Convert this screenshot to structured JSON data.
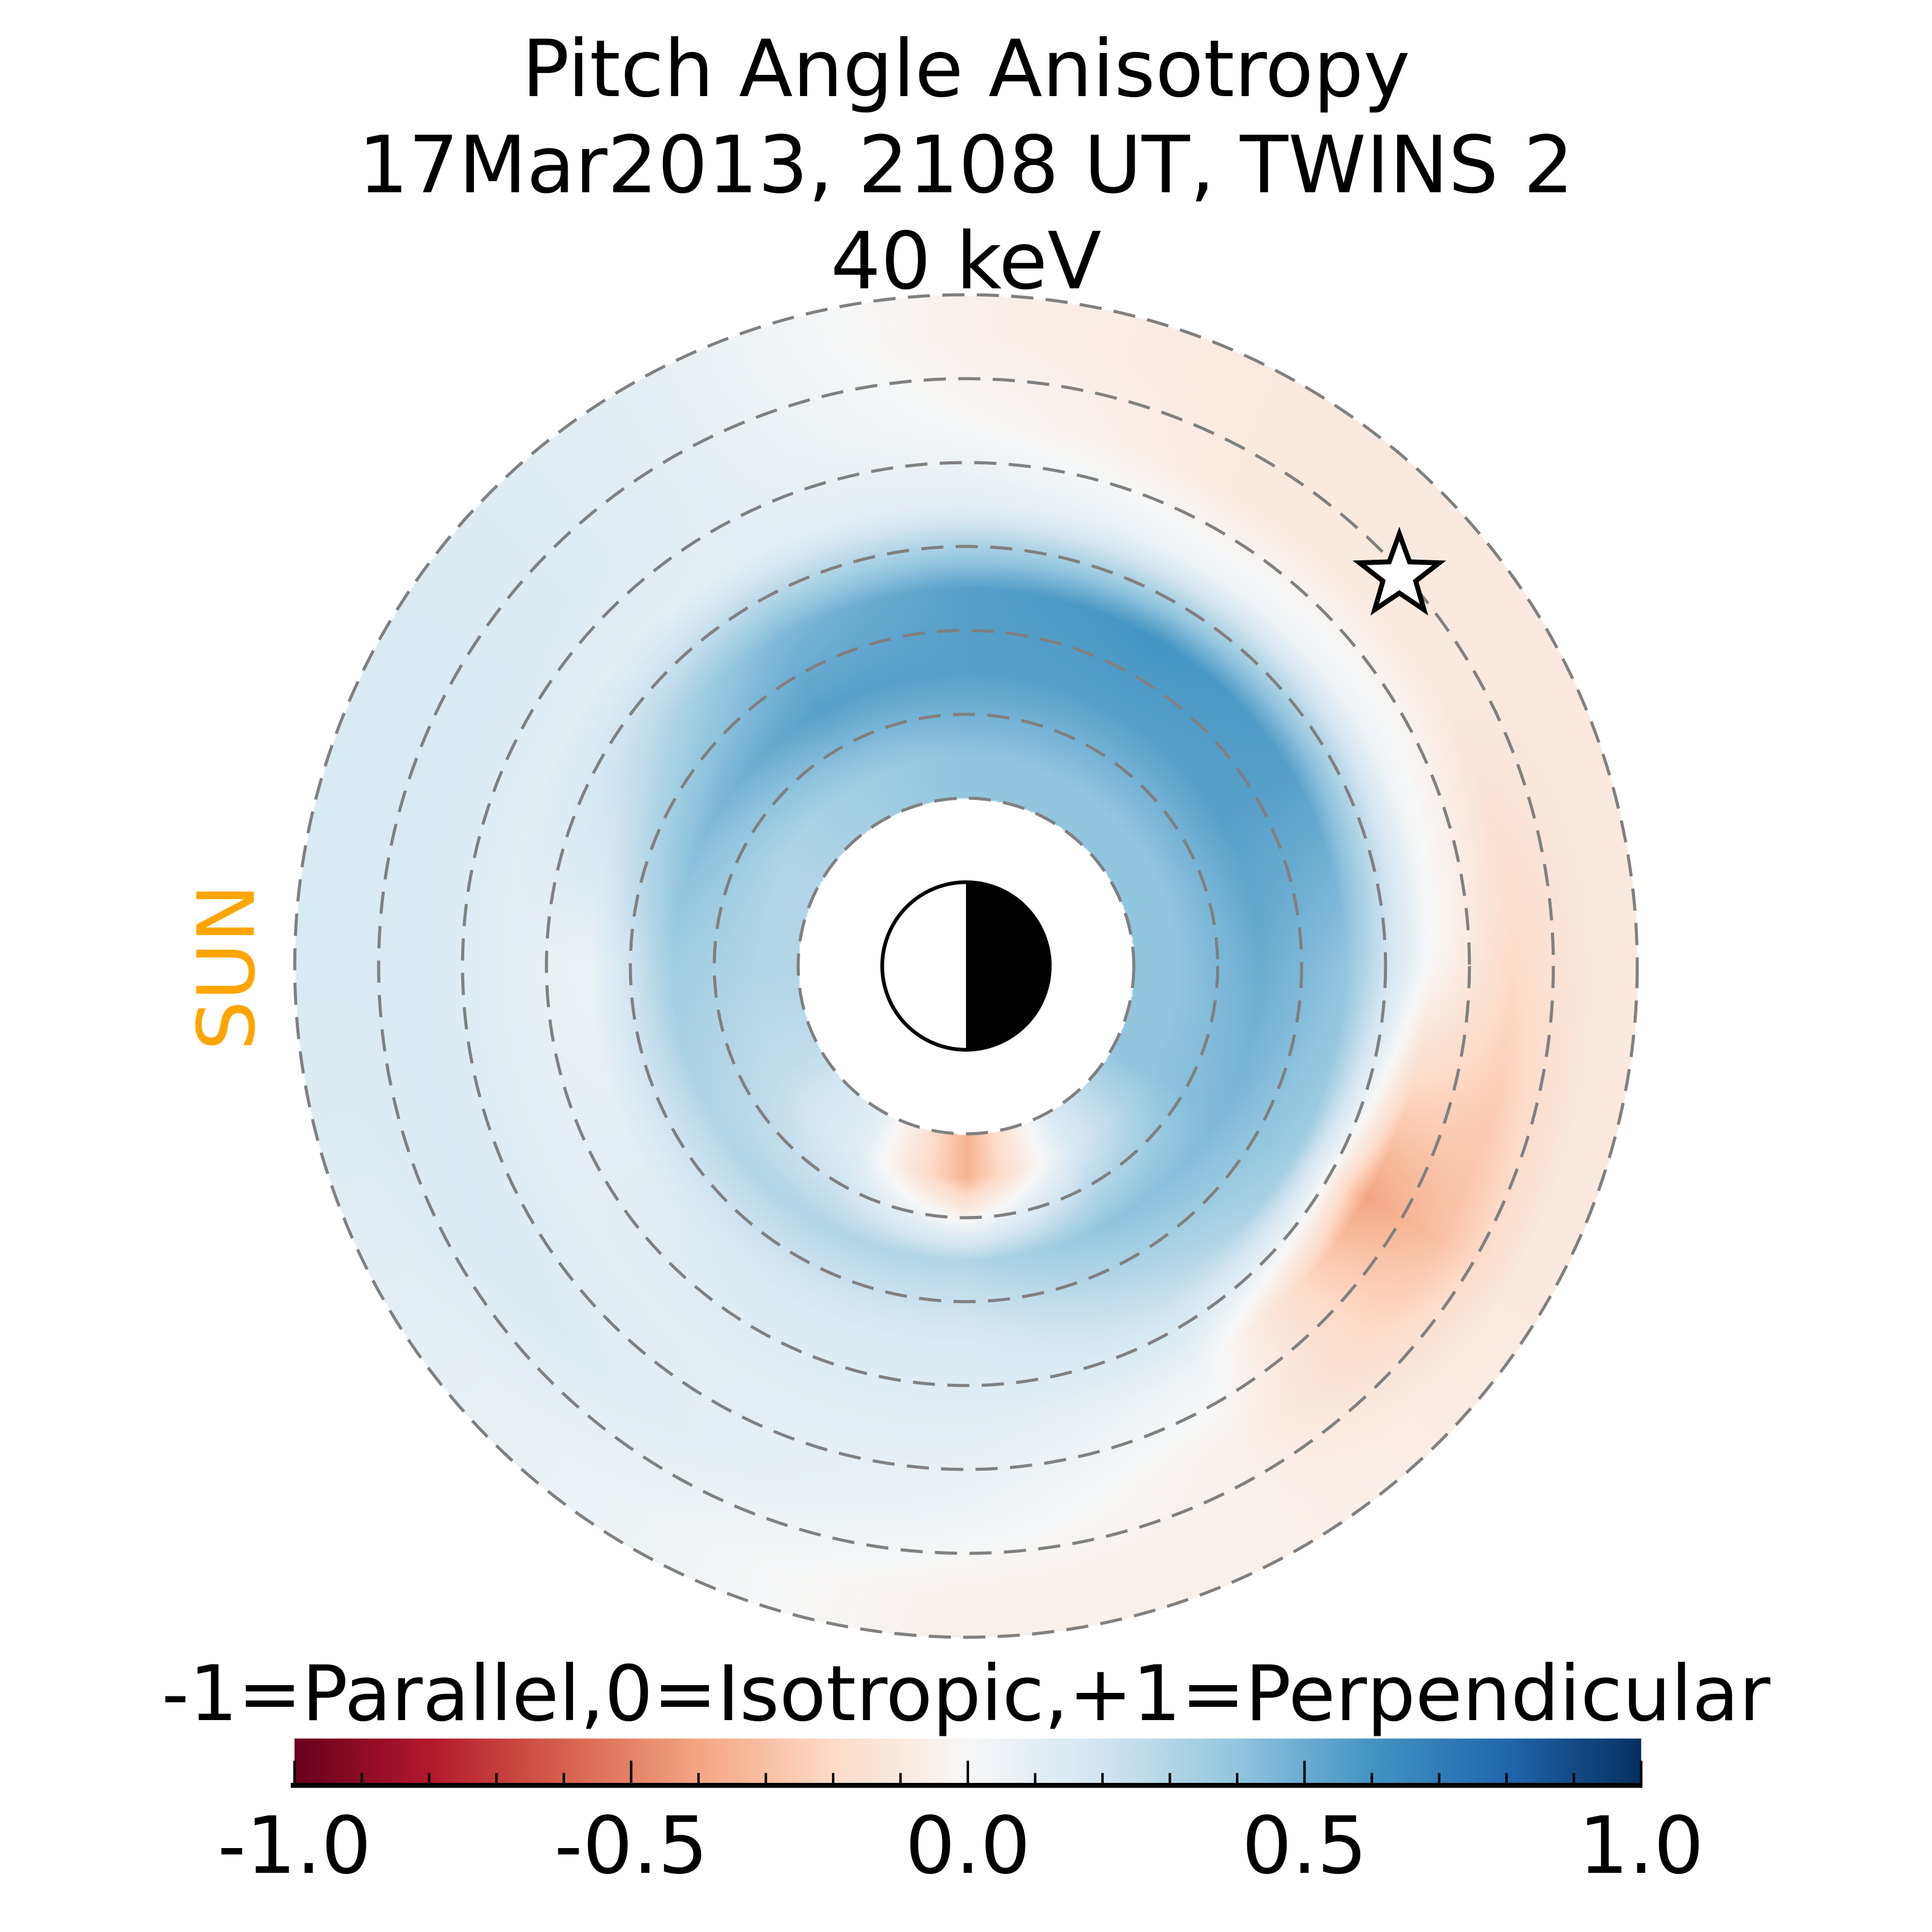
{
  "chart_data": {
    "type": "heatmap",
    "projection": "polar",
    "title": [
      "Pitch Angle Anisotropy",
      "17Mar2013, 2108 UT,  TWINS 2",
      "40 keV"
    ],
    "sun_label": "SUN",
    "sun_color": "#FFA500",
    "colorbar": {
      "label": "-1=Parallel,0=Isotropic,+1=Perpendicular",
      "range": [
        -1.0,
        1.0
      ],
      "ticks": [
        -1.0,
        -0.5,
        0.0,
        0.5,
        1.0
      ],
      "tick_labels": [
        "-1.0",
        "-0.5",
        "0.0",
        "0.5",
        "1.0"
      ],
      "minor_step": 0.1,
      "colormap": "RdBu",
      "colors": [
        "#67001f",
        "#b2182b",
        "#d6604d",
        "#f4a582",
        "#fddbc7",
        "#f7f7f7",
        "#d1e5f0",
        "#92c5de",
        "#4393c3",
        "#2166ac",
        "#053061"
      ]
    },
    "rings_L": [
      2,
      3,
      4,
      5,
      6,
      7,
      8
    ],
    "data_L_range": [
      2,
      8
    ],
    "earth_radius_L": 1,
    "orientation": "noon (sun) left, midnight right",
    "grid": {
      "L_centers": [
        2.5,
        3.5,
        4.5,
        5.5,
        6.5,
        7.5
      ],
      "MLT": [
        0,
        2,
        4,
        6,
        8,
        10,
        12,
        14,
        16,
        18,
        20,
        22
      ],
      "values": [
        [
          0.4,
          0.4,
          0.15,
          -0.35,
          0.1,
          0.25,
          0.3,
          0.3,
          0.35,
          0.4,
          0.4,
          0.4
        ],
        [
          0.5,
          0.45,
          0.4,
          0.3,
          0.3,
          0.3,
          0.35,
          0.45,
          0.55,
          0.55,
          0.55,
          0.55
        ],
        [
          0.4,
          0.35,
          0.25,
          0.15,
          0.15,
          0.1,
          0.05,
          0.25,
          0.45,
          0.55,
          0.6,
          0.55
        ],
        [
          0.0,
          -0.4,
          0.05,
          0.1,
          0.1,
          0.1,
          0.1,
          0.1,
          0.1,
          0.1,
          0.05,
          0.05
        ],
        [
          -0.2,
          -0.3,
          -0.05,
          0.05,
          0.1,
          0.15,
          0.15,
          0.15,
          0.1,
          0.0,
          -0.1,
          -0.1
        ],
        [
          -0.1,
          -0.1,
          -0.05,
          -0.05,
          0.05,
          0.1,
          0.15,
          0.15,
          0.1,
          -0.05,
          -0.1,
          -0.1
        ]
      ]
    },
    "marker": {
      "type": "star",
      "L": 6.95,
      "MLT": 21.2
    }
  }
}
